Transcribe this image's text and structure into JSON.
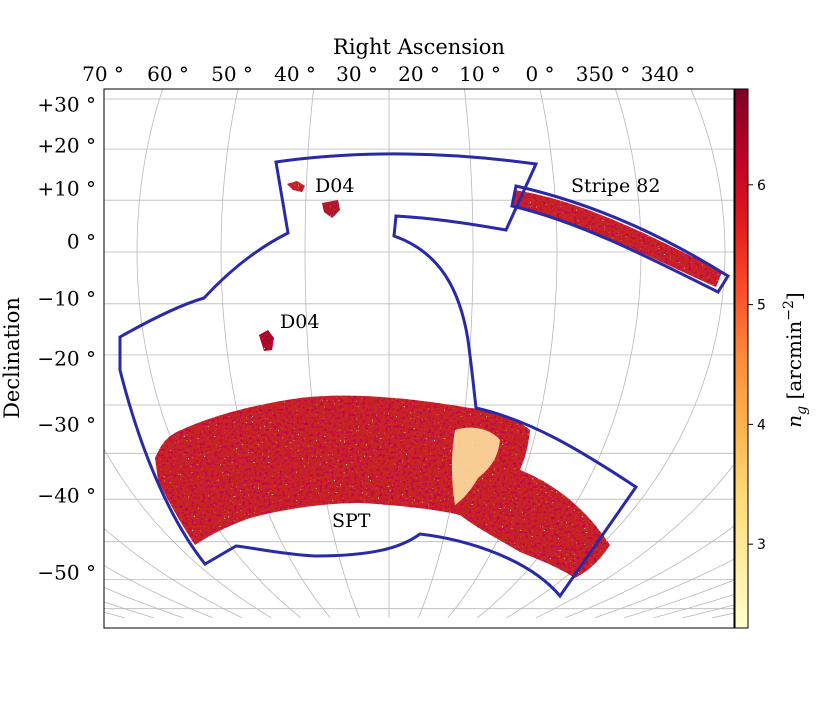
{
  "chart_data": {
    "type": "heatmap",
    "title": "",
    "projection": "McBryde-Thomas flat-polar quartic (equal-area)",
    "xlabel": "Right Ascension",
    "ylabel": "Declination",
    "x_ticks": [
      {
        "value": 70,
        "label": "70 °"
      },
      {
        "value": 60,
        "label": "60 °"
      },
      {
        "value": 50,
        "label": "50 °"
      },
      {
        "value": 40,
        "label": "40 °"
      },
      {
        "value": 30,
        "label": "30 °"
      },
      {
        "value": 20,
        "label": "20 °"
      },
      {
        "value": 10,
        "label": "10 °"
      },
      {
        "value": 0,
        "label": "0 °"
      },
      {
        "value": 350,
        "label": "350 °"
      },
      {
        "value": 340,
        "label": "340 °"
      }
    ],
    "y_ticks": [
      {
        "value": 30,
        "label": "+30 °"
      },
      {
        "value": 20,
        "label": "+20 °"
      },
      {
        "value": 10,
        "label": "+10 °"
      },
      {
        "value": 0,
        "label": "0 °"
      },
      {
        "value": -10,
        "label": "−10 °"
      },
      {
        "value": -20,
        "label": "−20 °"
      },
      {
        "value": -30,
        "label": "−30 °"
      },
      {
        "value": -40,
        "label": "−40 °"
      },
      {
        "value": -50,
        "label": "−50 °"
      }
    ],
    "colorbar": {
      "label_base": "n",
      "label_sub": "g",
      "label_unit": " [arcmin",
      "label_exp": "−2",
      "label_close": "]",
      "range": [
        2.3,
        6.8
      ],
      "ticks": [
        3,
        4,
        5,
        6
      ],
      "colormap": "YlOrRd",
      "colors": [
        "#ffffcc",
        "#ffeda0",
        "#fed976",
        "#feb24c",
        "#fd8d3c",
        "#fc4e2a",
        "#e31a1c",
        "#bd0026",
        "#800026"
      ]
    },
    "regions": [
      {
        "name": "SPT",
        "ra_range": [
          -7,
          65
        ],
        "dec_range": [
          -47,
          -26
        ],
        "mean_density": 5.6,
        "polygon_label": "SPT"
      },
      {
        "name": "Stripe 82",
        "ra_range": [
          316,
          358
        ],
        "dec_range": [
          -2,
          2
        ],
        "mean_density": 5.9,
        "polygon_label": "Stripe 82"
      },
      {
        "name": "D04 field 1",
        "ra": 37.5,
        "dec": 5.8,
        "mean_density": 5.7,
        "polygon_label": "D04"
      },
      {
        "name": "D04 field 2",
        "ra": 33.5,
        "dec": 0.2,
        "mean_density": 6.0
      },
      {
        "name": "D04 field 3",
        "ra": 41.5,
        "dec": -17.5,
        "mean_density": 6.3,
        "polygon_label": "D04"
      }
    ],
    "footprint_outline_color": "#2a2aa8",
    "grid": true
  }
}
